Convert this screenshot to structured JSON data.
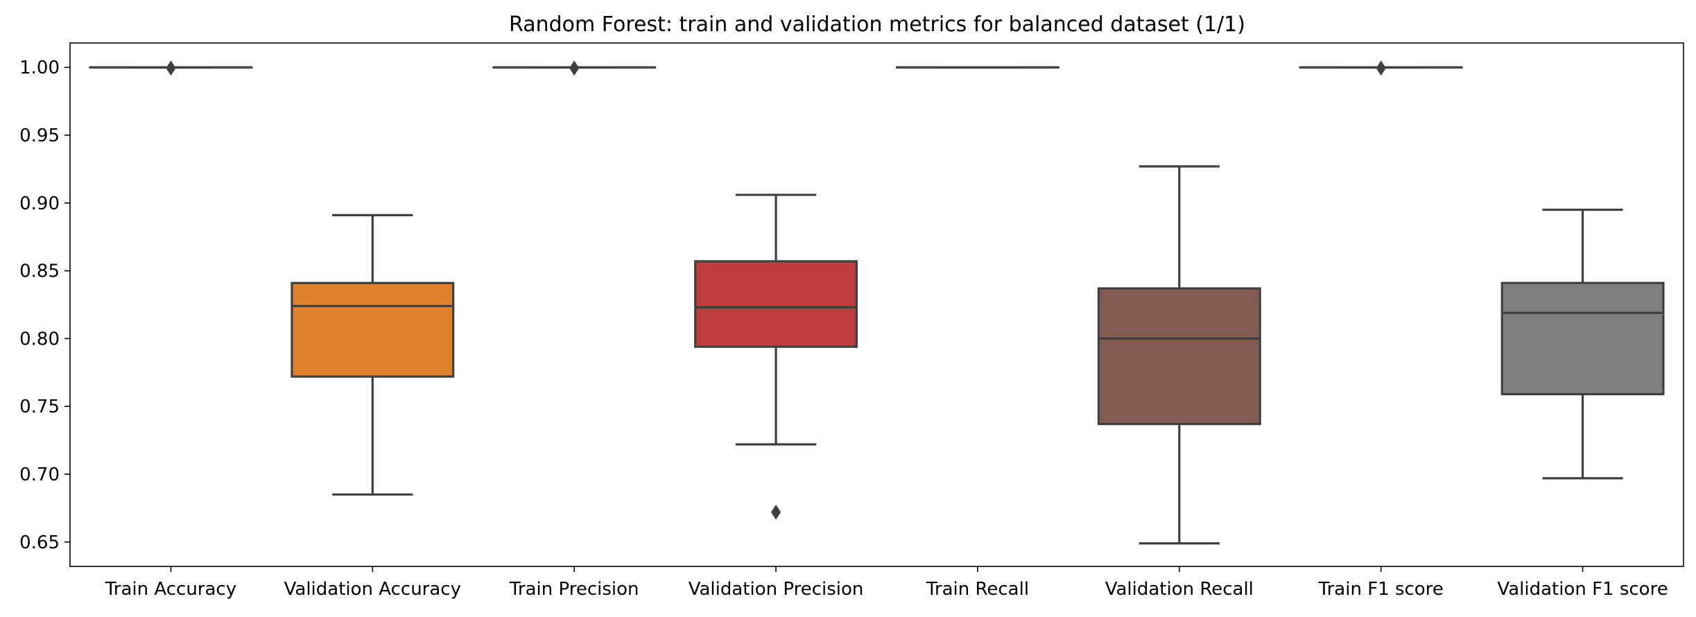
{
  "chart_data": {
    "type": "box",
    "title": "Random Forest: train and validation metrics for balanced dataset (1/1)",
    "xlabel": "",
    "ylabel": "",
    "ylim": [
      0.632,
      1.018
    ],
    "yticks": [
      0.65,
      0.7,
      0.75,
      0.8,
      0.85,
      0.9,
      0.95,
      1.0
    ],
    "ytick_labels": [
      "0.65",
      "0.70",
      "0.75",
      "0.80",
      "0.85",
      "0.90",
      "0.95",
      "1.00"
    ],
    "grid": false,
    "legend": "none",
    "categories": [
      "Train Accuracy",
      "Validation Accuracy",
      "Train Precision",
      "Validation Precision",
      "Train Recall",
      "Validation Recall",
      "Train F1 score",
      "Validation F1 score"
    ],
    "boxes": [
      {
        "category": "Train Accuracy",
        "color": "#1f77b4",
        "whisker_low": 1.0,
        "q1": 1.0,
        "median": 1.0,
        "q3": 1.0,
        "whisker_high": 1.0,
        "outliers": [
          0.9995
        ]
      },
      {
        "category": "Validation Accuracy",
        "color": "#e1812c",
        "whisker_low": 0.685,
        "q1": 0.772,
        "median": 0.824,
        "q3": 0.841,
        "whisker_high": 0.891,
        "outliers": []
      },
      {
        "category": "Train Precision",
        "color": "#2ca02c",
        "whisker_low": 1.0,
        "q1": 1.0,
        "median": 1.0,
        "q3": 1.0,
        "whisker_high": 1.0,
        "outliers": [
          0.9995
        ]
      },
      {
        "category": "Validation Precision",
        "color": "#c03d3e",
        "whisker_low": 0.722,
        "q1": 0.794,
        "median": 0.823,
        "q3": 0.857,
        "whisker_high": 0.906,
        "outliers": [
          0.672
        ]
      },
      {
        "category": "Train Recall",
        "color": "#9467bd",
        "whisker_low": 1.0,
        "q1": 1.0,
        "median": 1.0,
        "q3": 1.0,
        "whisker_high": 1.0,
        "outliers": []
      },
      {
        "category": "Validation Recall",
        "color": "#845b53",
        "whisker_low": 0.649,
        "q1": 0.737,
        "median": 0.8,
        "q3": 0.837,
        "whisker_high": 0.927,
        "outliers": []
      },
      {
        "category": "Train F1 score",
        "color": "#e377c2",
        "whisker_low": 1.0,
        "q1": 1.0,
        "median": 1.0,
        "q3": 1.0,
        "whisker_high": 1.0,
        "outliers": [
          0.9995
        ]
      },
      {
        "category": "Validation F1 score",
        "color": "#7f7f7f",
        "whisker_low": 0.697,
        "q1": 0.759,
        "median": 0.819,
        "q3": 0.841,
        "whisker_high": 0.895,
        "outliers": []
      }
    ]
  }
}
